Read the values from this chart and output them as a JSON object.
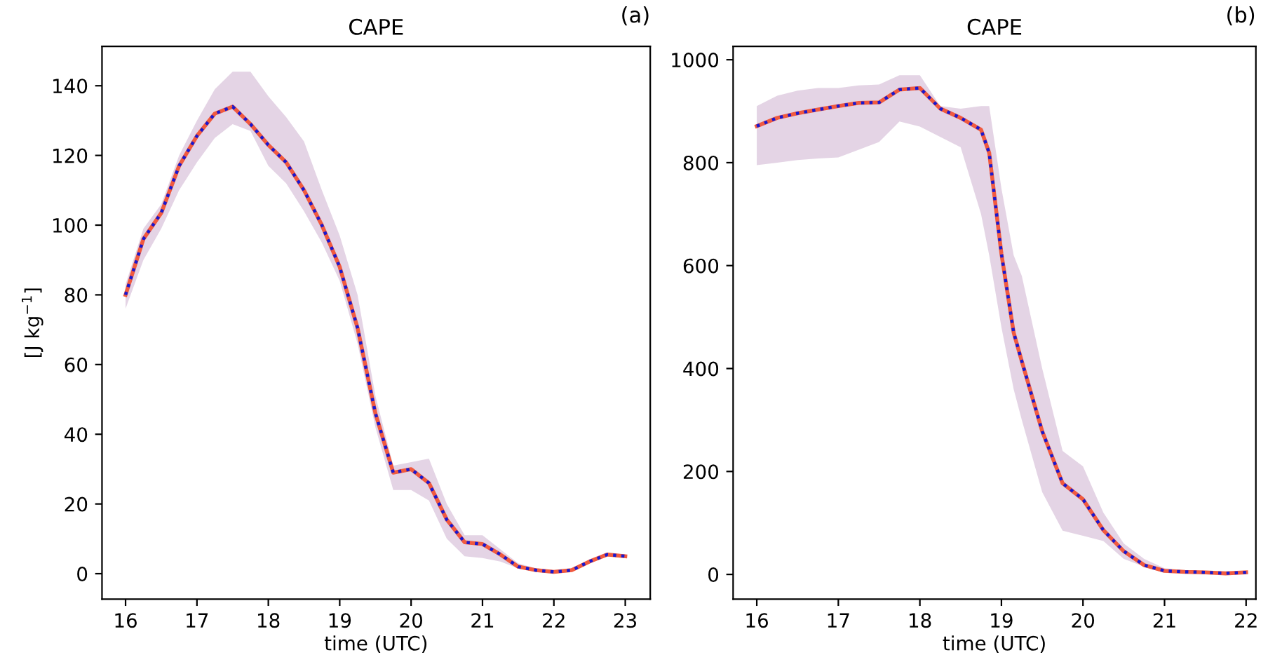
{
  "chart_data": [
    {
      "type": "line",
      "title": "CAPE",
      "xlabel": "time (UTC)",
      "ylabel": "[J kg$^{−1}$]",
      "annotations": [
        "(a)"
      ],
      "grid": false,
      "x": [
        16.0,
        16.25,
        16.5,
        16.75,
        17.0,
        17.25,
        17.5,
        17.75,
        18.0,
        18.25,
        18.5,
        18.75,
        19.0,
        19.25,
        19.5,
        19.75,
        20.0,
        20.25,
        20.5,
        20.75,
        21.0,
        21.25,
        21.5,
        21.75,
        22.0,
        22.25,
        22.5,
        22.75,
        23.0
      ],
      "xlim": [
        15.67,
        23.35
      ],
      "xticks": [
        16,
        17,
        18,
        19,
        20,
        21,
        22,
        23
      ],
      "ylim": [
        -7.3,
        151.3
      ],
      "yticks": [
        0,
        20,
        40,
        60,
        80,
        100,
        120,
        140
      ],
      "series": [
        {
          "color": "#f05a40",
          "line_style": "solid",
          "values": [
            80,
            96,
            103.5,
            117,
            125.6,
            132,
            134,
            129,
            123,
            118,
            110,
            100,
            88,
            70.5,
            46,
            29,
            30,
            26,
            15.5,
            9,
            8.5,
            5.5,
            2,
            1,
            0.5,
            1,
            3.5,
            5.5,
            5
          ],
          "lower": [
            76,
            90,
            99,
            110,
            118,
            125,
            129,
            127,
            117,
            112,
            104,
            95,
            84,
            66,
            42,
            24,
            24,
            21,
            10,
            5,
            4.5,
            3.5,
            1.5,
            0.5,
            0,
            0.5,
            3,
            5,
            4.5
          ],
          "upper": [
            83,
            99,
            106,
            120,
            130,
            139,
            144,
            144,
            137,
            131,
            124,
            110,
            97,
            80,
            51,
            31,
            32,
            33,
            20,
            11,
            11,
            7,
            3,
            1.5,
            1,
            1.5,
            4,
            6,
            5.5
          ]
        },
        {
          "color": "#1818d0",
          "line_style": "dotted",
          "values": [
            80,
            96,
            103.5,
            117,
            125.6,
            132,
            134,
            129,
            123,
            118,
            110,
            100,
            88,
            70.5,
            46,
            29,
            30,
            26,
            15.5,
            9,
            8.5,
            5.5,
            2,
            1,
            0.5,
            1,
            3.5,
            5.5,
            5
          ]
        }
      ]
    },
    {
      "type": "line",
      "title": "CAPE",
      "xlabel": "time (UTC)",
      "annotations": [
        "(b)"
      ],
      "grid": false,
      "x": [
        16.0,
        16.25,
        16.5,
        16.75,
        17.0,
        17.25,
        17.5,
        17.75,
        18.0,
        18.25,
        18.5,
        18.75,
        18.85,
        19.0,
        19.15,
        19.25,
        19.5,
        19.75,
        20.0,
        20.25,
        20.5,
        20.75,
        21.0,
        21.25,
        21.5,
        21.75,
        22.0
      ],
      "xlim": [
        15.71,
        22.12
      ],
      "xticks": [
        16,
        17,
        18,
        19,
        20,
        21,
        22
      ],
      "ylim": [
        -48,
        1026
      ],
      "yticks": [
        0,
        200,
        400,
        600,
        800,
        1000
      ],
      "series": [
        {
          "color": "#f05a40",
          "line_style": "solid",
          "values": [
            871,
            887,
            896,
            903,
            910,
            916,
            917,
            942,
            945,
            905,
            887,
            864,
            819,
            623,
            470,
            414,
            278,
            177,
            146,
            86,
            45,
            18,
            7,
            5,
            4,
            2,
            4
          ],
          "lower": [
            795,
            800,
            805,
            808,
            810,
            825,
            840,
            880,
            870,
            850,
            830,
            700,
            620,
            480,
            360,
            300,
            160,
            85,
            75,
            65,
            30,
            15,
            3,
            2,
            1,
            1,
            1
          ],
          "upper": [
            910,
            930,
            940,
            945,
            945,
            950,
            952,
            970,
            970,
            910,
            905,
            910,
            910,
            750,
            620,
            580,
            400,
            240,
            210,
            120,
            60,
            30,
            12,
            8,
            6,
            5,
            4
          ]
        },
        {
          "color": "#1818d0",
          "line_style": "dotted",
          "values": [
            871,
            887,
            896,
            903,
            910,
            916,
            917,
            942,
            945,
            905,
            887,
            864,
            819,
            623,
            470,
            414,
            278,
            177,
            146,
            86,
            45,
            18,
            7,
            5,
            4,
            2,
            4
          ]
        }
      ]
    }
  ]
}
